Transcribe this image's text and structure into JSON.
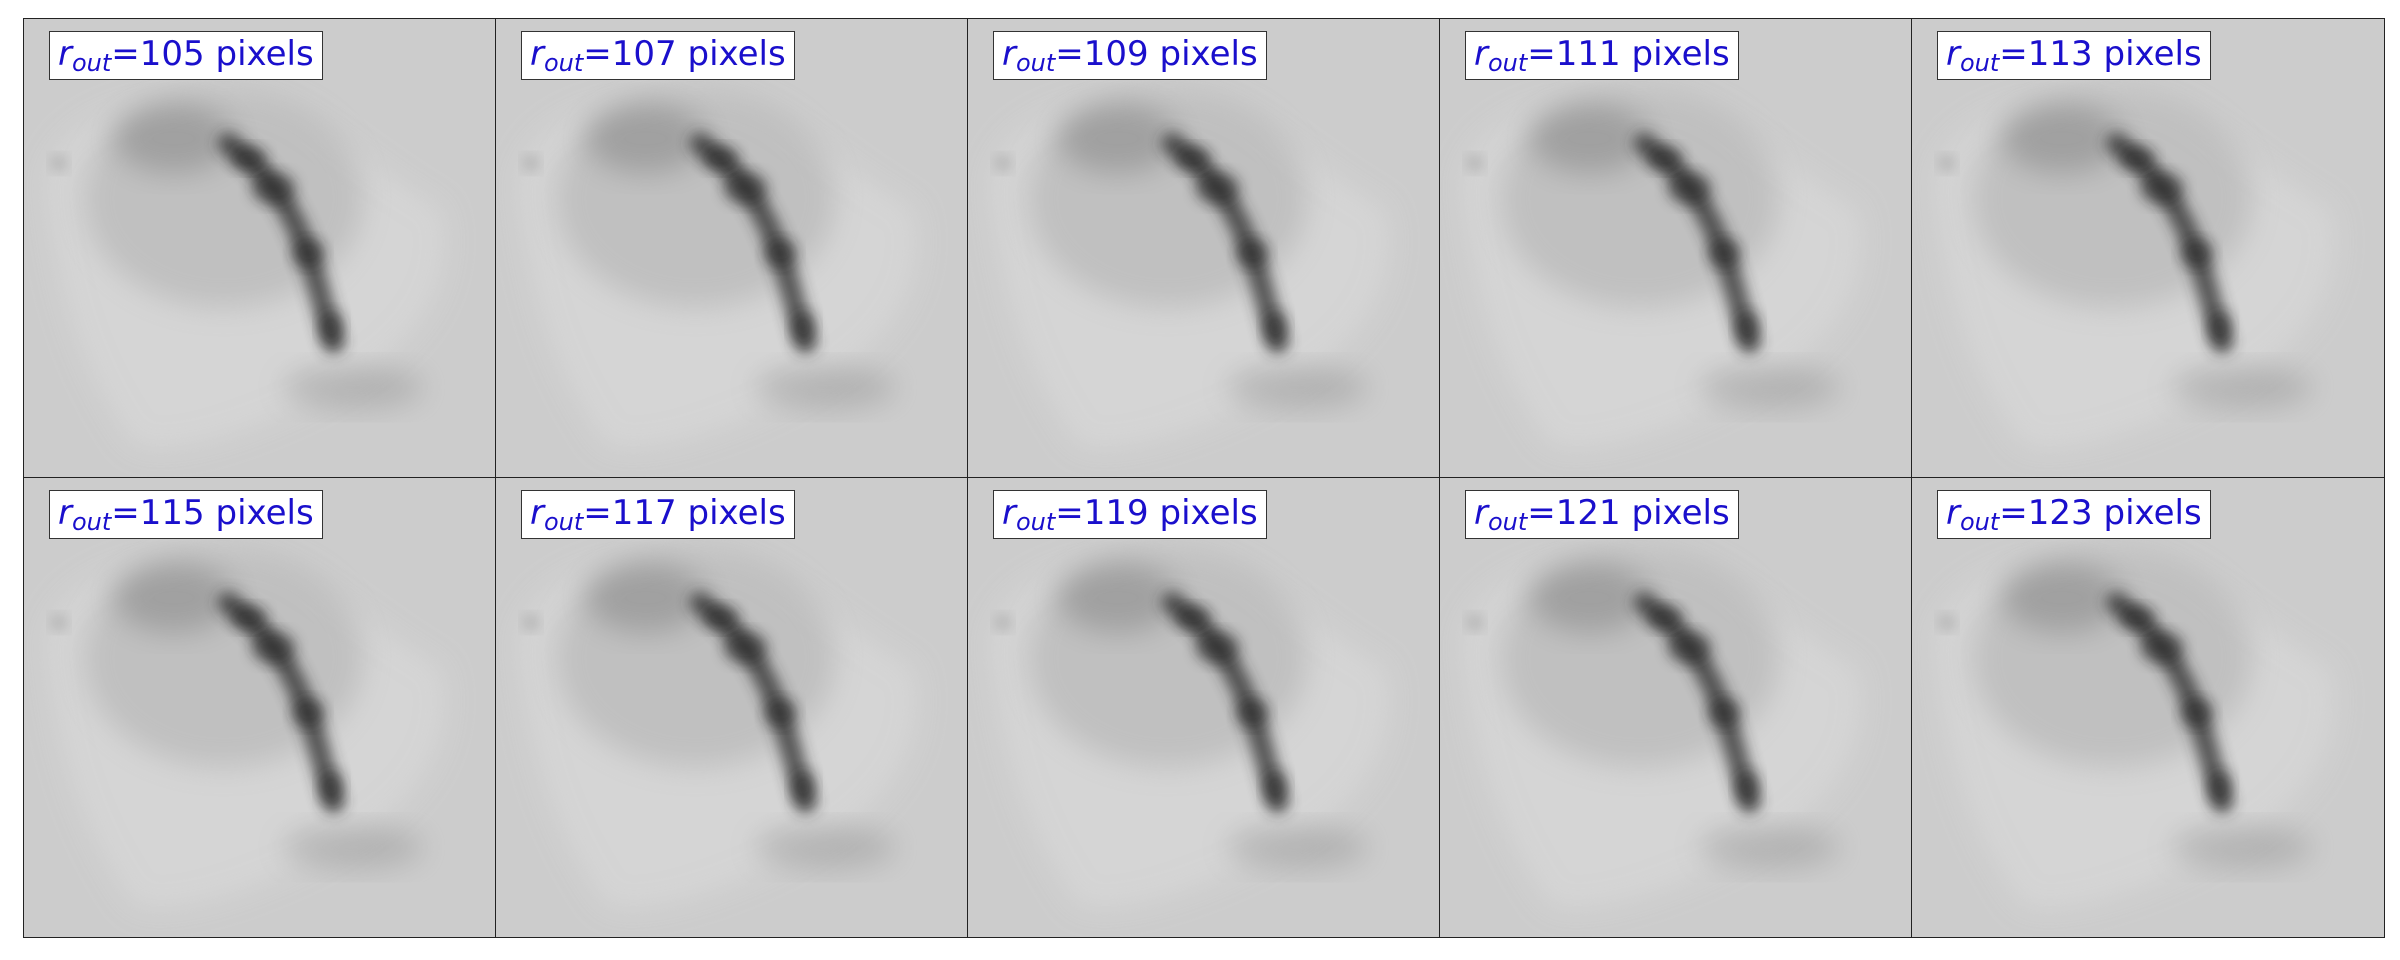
{
  "panels": [
    {
      "var": "r",
      "sub": "out",
      "text": "=105 pixels"
    },
    {
      "var": "r",
      "sub": "out",
      "text": "=107 pixels"
    },
    {
      "var": "r",
      "sub": "out",
      "text": "=109 pixels"
    },
    {
      "var": "r",
      "sub": "out",
      "text": "=111 pixels"
    },
    {
      "var": "r",
      "sub": "out",
      "text": "=113 pixels"
    },
    {
      "var": "r",
      "sub": "out",
      "text": "=115 pixels"
    },
    {
      "var": "r",
      "sub": "out",
      "text": "=117 pixels"
    },
    {
      "var": "r",
      "sub": "out",
      "text": "=119 pixels"
    },
    {
      "var": "r",
      "sub": "out",
      "text": "=121 pixels"
    },
    {
      "var": "r",
      "sub": "out",
      "text": "=123 pixels"
    }
  ],
  "colors": {
    "label_text": "#1a0fcc",
    "background": "#cccccc",
    "emission_dark": "#2e2e2e"
  }
}
